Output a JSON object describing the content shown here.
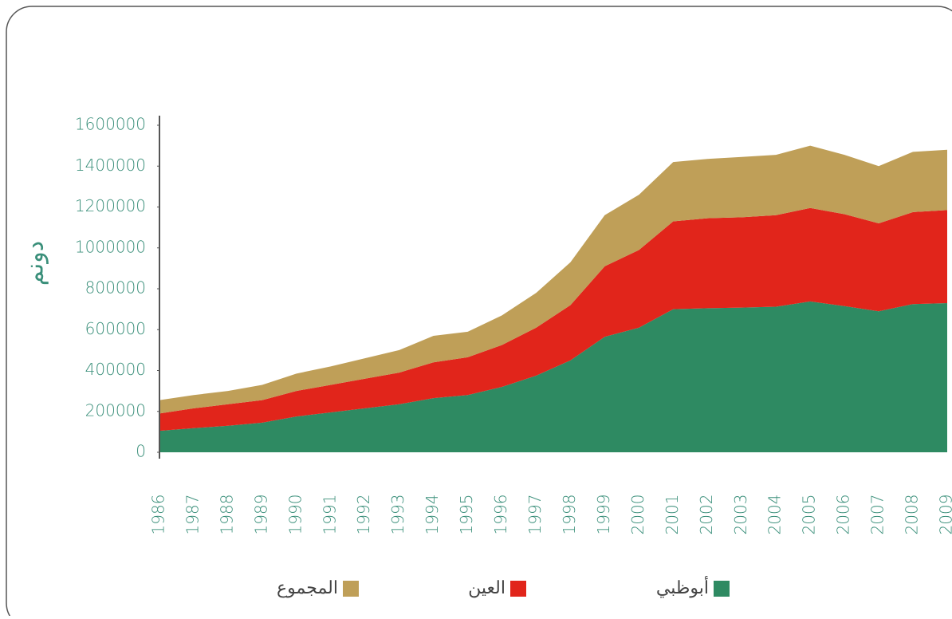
{
  "chart_data": {
    "type": "stacked_area",
    "y_label": "دونم",
    "categories": [
      "1986",
      "1987",
      "1988",
      "1989",
      "1990",
      "1991",
      "1992",
      "1993",
      "1994",
      "1995",
      "1996",
      "1997",
      "1998",
      "1999",
      "2000",
      "2001",
      "2002",
      "2003",
      "2004",
      "2005",
      "2006",
      "2007",
      "2008",
      "2009"
    ],
    "series": [
      {
        "name": "أبوظبي",
        "color": "#2e8a62",
        "values": [
          105000,
          118000,
          130000,
          145000,
          175000,
          195000,
          215000,
          235000,
          265000,
          280000,
          320000,
          375000,
          450000,
          565000,
          610000,
          700000,
          705000,
          708000,
          712000,
          738000,
          715000,
          690000,
          725000,
          730000
        ]
      },
      {
        "name": "العين",
        "color": "#e1251b",
        "values": [
          85000,
          97000,
          105000,
          110000,
          125000,
          135000,
          145000,
          155000,
          175000,
          185000,
          205000,
          235000,
          270000,
          345000,
          380000,
          430000,
          440000,
          442000,
          448000,
          457000,
          450000,
          430000,
          450000,
          455000
        ]
      },
      {
        "name": "المجموع",
        "color": "#bf9f58",
        "values": [
          65000,
          65000,
          65000,
          75000,
          85000,
          90000,
          100000,
          110000,
          130000,
          125000,
          145000,
          170000,
          210000,
          250000,
          270000,
          290000,
          290000,
          295000,
          295000,
          305000,
          290000,
          280000,
          295000,
          295000
        ]
      }
    ],
    "ylim": [
      0,
      1600000
    ],
    "yticks": [
      0,
      200000,
      400000,
      600000,
      800000,
      1000000,
      1200000,
      1400000,
      1600000
    ]
  }
}
